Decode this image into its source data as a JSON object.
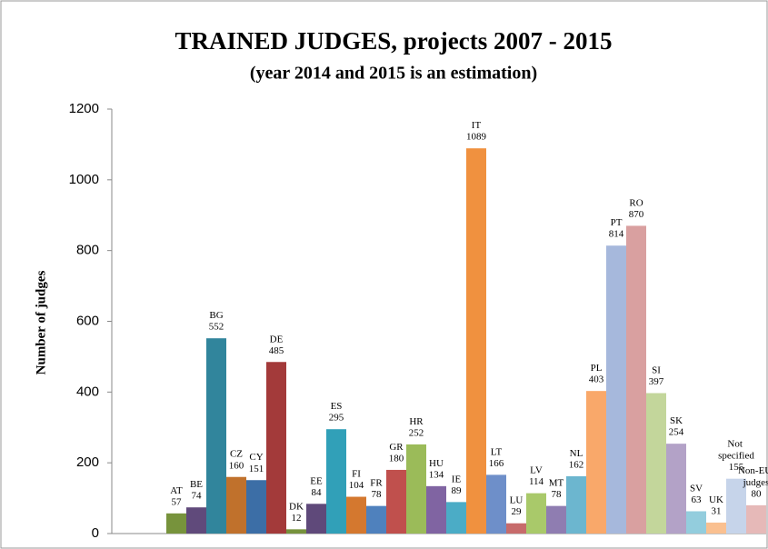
{
  "chart_data": {
    "type": "bar",
    "title": "TRAINED JUDGES, projects 2007 - 2015",
    "subtitle": "(year 2014 and 2015 is an estimation)",
    "y_label": "Number of judges",
    "categories": [
      "AT",
      "BE",
      "BG",
      "CZ",
      "CY",
      "DE",
      "DK",
      "EE",
      "ES",
      "FI",
      "FR",
      "GR",
      "HR",
      "HU",
      "IE",
      "IT",
      "LT",
      "LU",
      "LV",
      "MT",
      "NL",
      "PL",
      "PT",
      "RO",
      "SI",
      "SK",
      "SV",
      "UK",
      "Not specified",
      "Non-EU judges"
    ],
    "values": [
      57,
      74,
      552,
      160,
      151,
      485,
      12,
      84,
      295,
      104,
      78,
      180,
      252,
      134,
      89,
      1089,
      166,
      29,
      114,
      78,
      162,
      403,
      814,
      870,
      397,
      254,
      63,
      31,
      155,
      80
    ],
    "colors": [
      "#77933c",
      "#604a7b",
      "#31859c",
      "#c0712c",
      "#3c6ea6",
      "#a33a3a",
      "#76923c",
      "#5f497a",
      "#31a0b8",
      "#d4782f",
      "#4f81bd",
      "#c0504d",
      "#9bbb59",
      "#8064a2",
      "#4bacc6",
      "#f0913f",
      "#6e8fc9",
      "#c76b6b",
      "#a9c96a",
      "#8f7db1",
      "#6cb6cf",
      "#f9a86a",
      "#a6b8dc",
      "#d9a0a0",
      "#c3d69b",
      "#b3a2c7",
      "#93cddd",
      "#fac090",
      "#c6d4ea",
      "#e6b9b8"
    ],
    "ylim": [
      0,
      1200
    ],
    "yticks": [
      0,
      200,
      400,
      600,
      800,
      1000,
      1200
    ],
    "grid": false
  }
}
